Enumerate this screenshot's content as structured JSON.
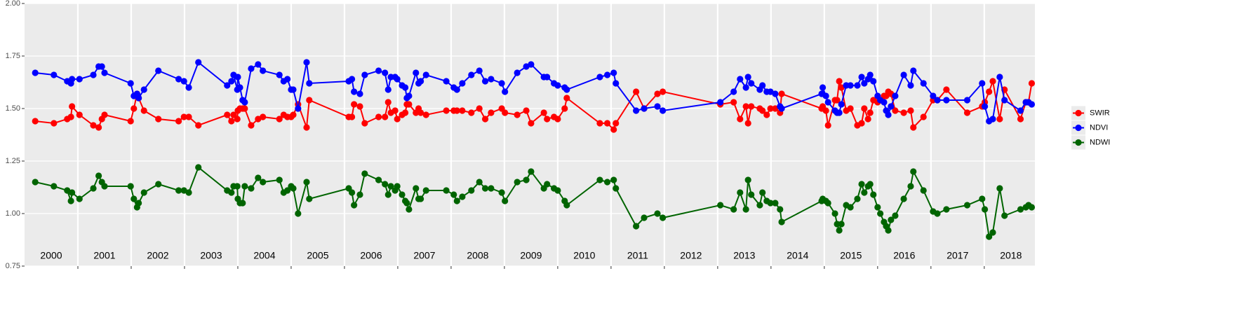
{
  "chart_data": {
    "type": "line",
    "x": [
      2000.2,
      2000.55,
      2000.8,
      2000.87,
      2000.89,
      2001.03,
      2001.29,
      2001.39,
      2001.45,
      2001.5,
      2001.99,
      2002.05,
      2002.11,
      2002.14,
      2002.24,
      2002.51,
      2002.89,
      2002.99,
      2003.08,
      2003.26,
      2003.8,
      2003.88,
      2003.92,
      2003.99,
      2004.0,
      2004.04,
      2004.09,
      2004.13,
      2004.25,
      2004.38,
      2004.47,
      2004.78,
      2004.86,
      2004.93,
      2005.0,
      2005.04,
      2005.13,
      2005.29,
      2005.34,
      2006.08,
      2006.14,
      2006.18,
      2006.29,
      2006.38,
      2006.64,
      2006.76,
      2006.82,
      2006.87,
      2006.95,
      2006.99,
      2007.08,
      2007.14,
      2007.17,
      2007.21,
      2007.34,
      2007.39,
      2007.43,
      2007.53,
      2007.91,
      2008.05,
      2008.11,
      2008.21,
      2008.38,
      2008.53,
      2008.64,
      2008.75,
      2008.95,
      2009.01,
      2009.24,
      2009.41,
      2009.5,
      2009.74,
      2009.8,
      2009.93,
      2010.0,
      2010.13,
      2010.17,
      2010.79,
      2010.93,
      2011.05,
      2011.09,
      2011.47,
      2011.62,
      2011.87,
      2011.97,
      2013.05,
      2013.3,
      2013.42,
      2013.53,
      2013.57,
      2013.63,
      2013.79,
      2013.84,
      2013.92,
      2013.99,
      2014.08,
      2014.17,
      2014.2,
      2014.95,
      2014.97,
      2015.03,
      2015.07,
      2015.2,
      2015.24,
      2015.28,
      2015.32,
      2015.41,
      2015.49,
      2015.62,
      2015.7,
      2015.75,
      2015.82,
      2015.86,
      2015.92,
      2016.0,
      2016.05,
      2016.12,
      2016.16,
      2016.2,
      2016.25,
      2016.33,
      2016.49,
      2016.62,
      2016.67,
      2016.86,
      2017.04,
      2017.12,
      2017.29,
      2017.68,
      2017.96,
      2018.01,
      2018.09,
      2018.16,
      2018.29,
      2018.38,
      2018.68,
      2018.78,
      2018.83,
      2018.89
    ],
    "series": [
      {
        "name": "SWIR",
        "color": "#ff0000",
        "values": [
          1.44,
          1.43,
          1.45,
          1.46,
          1.51,
          1.47,
          1.42,
          1.41,
          1.45,
          1.47,
          1.44,
          1.5,
          1.57,
          1.55,
          1.49,
          1.45,
          1.44,
          1.46,
          1.46,
          1.42,
          1.47,
          1.44,
          1.47,
          1.45,
          1.49,
          1.5,
          1.5,
          1.5,
          1.42,
          1.45,
          1.46,
          1.45,
          1.47,
          1.46,
          1.46,
          1.47,
          1.52,
          1.41,
          1.54,
          1.46,
          1.46,
          1.52,
          1.51,
          1.43,
          1.46,
          1.46,
          1.53,
          1.48,
          1.49,
          1.45,
          1.47,
          1.48,
          1.52,
          1.52,
          1.48,
          1.5,
          1.48,
          1.47,
          1.49,
          1.49,
          1.49,
          1.49,
          1.48,
          1.5,
          1.45,
          1.48,
          1.5,
          1.48,
          1.47,
          1.49,
          1.43,
          1.48,
          1.45,
          1.46,
          1.45,
          1.5,
          1.55,
          1.43,
          1.43,
          1.4,
          1.43,
          1.58,
          1.5,
          1.57,
          1.58,
          1.52,
          1.53,
          1.45,
          1.51,
          1.43,
          1.51,
          1.5,
          1.49,
          1.47,
          1.5,
          1.5,
          1.48,
          1.57,
          1.5,
          1.51,
          1.49,
          1.42,
          1.54,
          1.54,
          1.63,
          1.6,
          1.49,
          1.5,
          1.42,
          1.43,
          1.5,
          1.45,
          1.48,
          1.54,
          1.53,
          1.54,
          1.56,
          1.56,
          1.58,
          1.57,
          1.49,
          1.48,
          1.49,
          1.41,
          1.46,
          1.54,
          1.54,
          1.59,
          1.48,
          1.51,
          1.53,
          1.58,
          1.63,
          1.45,
          1.59,
          1.45,
          1.53,
          1.53,
          1.62
        ]
      },
      {
        "name": "NDVI",
        "color": "#0000ff",
        "values": [
          1.67,
          1.66,
          1.63,
          1.62,
          1.64,
          1.64,
          1.66,
          1.7,
          1.7,
          1.67,
          1.62,
          1.56,
          1.57,
          1.55,
          1.59,
          1.68,
          1.64,
          1.63,
          1.6,
          1.72,
          1.61,
          1.63,
          1.66,
          1.59,
          1.65,
          1.6,
          1.54,
          1.53,
          1.69,
          1.71,
          1.68,
          1.66,
          1.63,
          1.64,
          1.59,
          1.59,
          1.5,
          1.72,
          1.62,
          1.63,
          1.64,
          1.58,
          1.57,
          1.66,
          1.68,
          1.67,
          1.59,
          1.65,
          1.65,
          1.64,
          1.61,
          1.6,
          1.55,
          1.56,
          1.67,
          1.62,
          1.63,
          1.66,
          1.63,
          1.6,
          1.59,
          1.62,
          1.66,
          1.68,
          1.63,
          1.64,
          1.62,
          1.58,
          1.67,
          1.7,
          1.71,
          1.65,
          1.65,
          1.62,
          1.61,
          1.6,
          1.59,
          1.65,
          1.66,
          1.67,
          1.62,
          1.49,
          1.5,
          1.51,
          1.49,
          1.53,
          1.58,
          1.64,
          1.6,
          1.65,
          1.62,
          1.59,
          1.61,
          1.58,
          1.58,
          1.57,
          1.51,
          1.5,
          1.57,
          1.6,
          1.56,
          1.53,
          1.49,
          1.48,
          1.48,
          1.52,
          1.61,
          1.61,
          1.61,
          1.65,
          1.62,
          1.64,
          1.66,
          1.63,
          1.56,
          1.54,
          1.53,
          1.49,
          1.47,
          1.51,
          1.56,
          1.66,
          1.61,
          1.68,
          1.62,
          1.56,
          1.54,
          1.54,
          1.54,
          1.62,
          1.51,
          1.44,
          1.45,
          1.65,
          1.54,
          1.49,
          1.53,
          1.53,
          1.52
        ]
      },
      {
        "name": "NDWI",
        "color": "#006400",
        "values": [
          1.15,
          1.13,
          1.11,
          1.06,
          1.1,
          1.07,
          1.12,
          1.18,
          1.15,
          1.13,
          1.13,
          1.07,
          1.03,
          1.05,
          1.1,
          1.14,
          1.11,
          1.11,
          1.1,
          1.22,
          1.11,
          1.1,
          1.13,
          1.13,
          1.07,
          1.05,
          1.05,
          1.13,
          1.12,
          1.17,
          1.15,
          1.16,
          1.1,
          1.11,
          1.13,
          1.12,
          1.0,
          1.15,
          1.07,
          1.12,
          1.1,
          1.04,
          1.09,
          1.19,
          1.16,
          1.14,
          1.09,
          1.13,
          1.11,
          1.13,
          1.09,
          1.06,
          1.05,
          1.02,
          1.12,
          1.07,
          1.07,
          1.11,
          1.11,
          1.09,
          1.06,
          1.08,
          1.11,
          1.15,
          1.12,
          1.12,
          1.1,
          1.06,
          1.15,
          1.16,
          1.2,
          1.12,
          1.14,
          1.12,
          1.11,
          1.06,
          1.04,
          1.16,
          1.15,
          1.16,
          1.12,
          0.94,
          0.98,
          1.0,
          0.98,
          1.04,
          1.02,
          1.1,
          1.02,
          1.16,
          1.09,
          1.04,
          1.1,
          1.06,
          1.05,
          1.05,
          1.02,
          0.96,
          1.06,
          1.07,
          1.06,
          1.05,
          1.0,
          0.95,
          0.92,
          0.95,
          1.04,
          1.03,
          1.07,
          1.14,
          1.1,
          1.13,
          1.14,
          1.09,
          1.03,
          1.0,
          0.96,
          0.94,
          0.92,
          0.97,
          0.99,
          1.07,
          1.13,
          1.2,
          1.11,
          1.01,
          1.0,
          1.02,
          1.04,
          1.07,
          1.02,
          0.89,
          0.91,
          1.12,
          0.99,
          1.02,
          1.03,
          1.04,
          1.03
        ]
      }
    ],
    "xlim": [
      2000,
      2018.95
    ],
    "xticks": [
      2001,
      2002,
      2003,
      2004,
      2005,
      2006,
      2007,
      2008,
      2009,
      2010,
      2011,
      2012,
      2013,
      2014,
      2015,
      2016,
      2017,
      2018
    ],
    "year_labels": [
      {
        "value": 2000.5,
        "label": "2000"
      },
      {
        "value": 2001.5,
        "label": "2001"
      },
      {
        "value": 2002.5,
        "label": "2002"
      },
      {
        "value": 2003.5,
        "label": "2003"
      },
      {
        "value": 2004.5,
        "label": "2004"
      },
      {
        "value": 2005.5,
        "label": "2005"
      },
      {
        "value": 2006.5,
        "label": "2006"
      },
      {
        "value": 2007.5,
        "label": "2007"
      },
      {
        "value": 2008.5,
        "label": "2008"
      },
      {
        "value": 2009.5,
        "label": "2009"
      },
      {
        "value": 2010.5,
        "label": "2010"
      },
      {
        "value": 2011.5,
        "label": "2011"
      },
      {
        "value": 2012.5,
        "label": "2012"
      },
      {
        "value": 2013.5,
        "label": "2013"
      },
      {
        "value": 2014.5,
        "label": "2014"
      },
      {
        "value": 2015.5,
        "label": "2015"
      },
      {
        "value": 2016.5,
        "label": "2016"
      },
      {
        "value": 2017.5,
        "label": "2017"
      },
      {
        "value": 2018.5,
        "label": "2018"
      }
    ],
    "ylim": [
      0.75,
      2.0
    ],
    "yticks": [
      {
        "value": 0.75,
        "label": "0.75"
      },
      {
        "value": 1.0,
        "label": "1.00"
      },
      {
        "value": 1.25,
        "label": "1.25"
      },
      {
        "value": 1.5,
        "label": "1.50"
      },
      {
        "value": 1.75,
        "label": "1.75"
      },
      {
        "value": 2.0,
        "label": "2.00"
      }
    ],
    "grid": true,
    "legend_position": "right"
  }
}
